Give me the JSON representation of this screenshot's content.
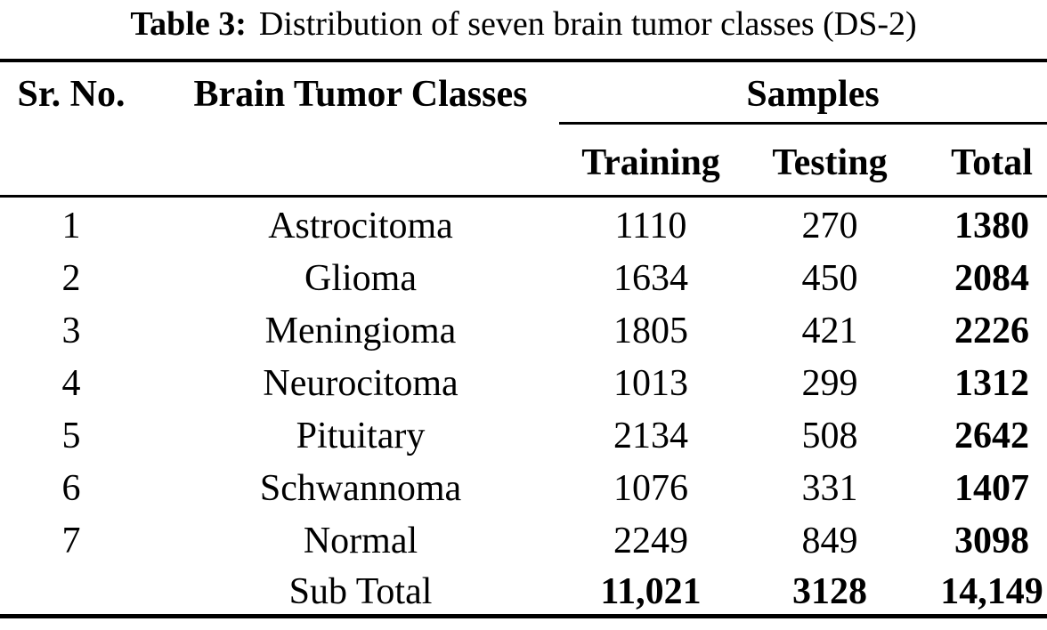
{
  "caption": {
    "label": "Table 3:",
    "text": "Distribution of seven brain tumor classes (DS-2)"
  },
  "table": {
    "headers": {
      "sr_no": "Sr. No.",
      "classes": "Brain Tumor Classes",
      "samples": "Samples",
      "training": "Training",
      "testing": "Testing",
      "total": "Total"
    },
    "rows": [
      {
        "sr": "1",
        "class": "Astrocitoma",
        "training": "1110",
        "testing": "270",
        "total": "1380"
      },
      {
        "sr": "2",
        "class": "Glioma",
        "training": "1634",
        "testing": "450",
        "total": "2084"
      },
      {
        "sr": "3",
        "class": "Meningioma",
        "training": "1805",
        "testing": "421",
        "total": "2226"
      },
      {
        "sr": "4",
        "class": "Neurocitoma",
        "training": "1013",
        "testing": "299",
        "total": "1312"
      },
      {
        "sr": "5",
        "class": "Pituitary",
        "training": "2134",
        "testing": "508",
        "total": "2642"
      },
      {
        "sr": "6",
        "class": "Schwannoma",
        "training": "1076",
        "testing": "331",
        "total": "1407"
      },
      {
        "sr": "7",
        "class": "Normal",
        "training": "2249",
        "testing": "849",
        "total": "3098"
      }
    ],
    "footer": {
      "label": "Sub Total",
      "training": "11,021",
      "testing": "3128",
      "total": "14,149"
    }
  },
  "colors": {
    "text": "#000000",
    "background": "#ffffff",
    "rule": "#000000"
  }
}
